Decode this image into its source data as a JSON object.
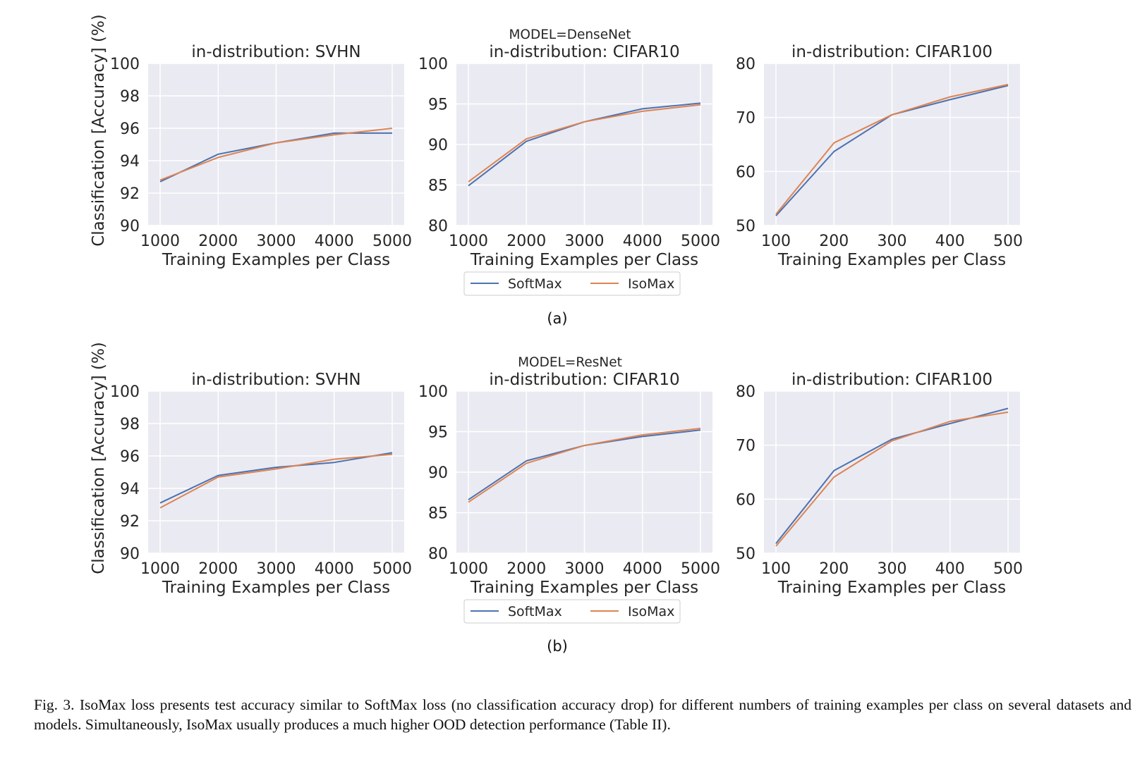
{
  "colors": {
    "softmax": "#4c72b0",
    "isomax": "#dd8452",
    "plot_bg": "#eaeaf2",
    "grid": "#ffffff"
  },
  "legend": {
    "entries": [
      "SoftMax",
      "IsoMax"
    ]
  },
  "rows": [
    {
      "suptitle": "MODEL=DenseNet",
      "sublabel": "(a)"
    },
    {
      "suptitle": "MODEL=ResNet",
      "sublabel": "(b)"
    }
  ],
  "ylabel": "Classification [Accuracy] (%)",
  "xlabel": "Training Examples per Class",
  "caption": "Fig. 3.  IsoMax loss presents test accuracy similar to SoftMax loss (no classification accuracy drop) for different numbers of training examples per class on several datasets and models. Simultaneously, IsoMax usually produces a much higher OOD detection performance (Table II).",
  "chart_data": [
    {
      "type": "line",
      "row": "DenseNet",
      "title": "in-distribution: SVHN",
      "xlabel": "Training Examples per Class",
      "ylabel": "Classification [Accuracy] (%)",
      "x": [
        1000,
        2000,
        3000,
        4000,
        5000
      ],
      "xticks": [
        1000,
        2000,
        3000,
        4000,
        5000
      ],
      "xlim": [
        1000,
        5000
      ],
      "ylim": [
        90,
        100
      ],
      "yticks": [
        90,
        92,
        94,
        96,
        98,
        100
      ],
      "grid": true,
      "series": [
        {
          "name": "SoftMax",
          "values": [
            92.7,
            94.4,
            95.1,
            95.7,
            95.7
          ]
        },
        {
          "name": "IsoMax",
          "values": [
            92.8,
            94.2,
            95.1,
            95.6,
            96.0
          ]
        }
      ]
    },
    {
      "type": "line",
      "row": "DenseNet",
      "title": "in-distribution: CIFAR10",
      "xlabel": "Training Examples per Class",
      "ylabel": "",
      "x": [
        1000,
        2000,
        3000,
        4000,
        5000
      ],
      "xticks": [
        1000,
        2000,
        3000,
        4000,
        5000
      ],
      "xlim": [
        1000,
        5000
      ],
      "ylim": [
        80,
        100
      ],
      "yticks": [
        80,
        85,
        90,
        95,
        100
      ],
      "grid": true,
      "series": [
        {
          "name": "SoftMax",
          "values": [
            84.9,
            90.4,
            92.8,
            94.4,
            95.1
          ]
        },
        {
          "name": "IsoMax",
          "values": [
            85.4,
            90.7,
            92.8,
            94.1,
            94.9
          ]
        }
      ]
    },
    {
      "type": "line",
      "row": "DenseNet",
      "title": "in-distribution: CIFAR100",
      "xlabel": "Training Examples per Class",
      "ylabel": "",
      "x": [
        100,
        200,
        300,
        400,
        500
      ],
      "xticks": [
        100,
        200,
        300,
        400,
        500
      ],
      "xlim": [
        100,
        500
      ],
      "ylim": [
        50,
        80
      ],
      "yticks": [
        50,
        60,
        70,
        80
      ],
      "grid": true,
      "series": [
        {
          "name": "SoftMax",
          "values": [
            51.8,
            63.7,
            70.5,
            73.3,
            75.9
          ]
        },
        {
          "name": "IsoMax",
          "values": [
            52.1,
            65.3,
            70.5,
            73.8,
            76.1
          ]
        }
      ]
    },
    {
      "type": "line",
      "row": "ResNet",
      "title": "in-distribution: SVHN",
      "xlabel": "Training Examples per Class",
      "ylabel": "Classification [Accuracy] (%)",
      "x": [
        1000,
        2000,
        3000,
        4000,
        5000
      ],
      "xticks": [
        1000,
        2000,
        3000,
        4000,
        5000
      ],
      "xlim": [
        1000,
        5000
      ],
      "ylim": [
        90,
        100
      ],
      "yticks": [
        90,
        92,
        94,
        96,
        98,
        100
      ],
      "grid": true,
      "series": [
        {
          "name": "SoftMax",
          "values": [
            93.1,
            94.8,
            95.3,
            95.6,
            96.2
          ]
        },
        {
          "name": "IsoMax",
          "values": [
            92.8,
            94.7,
            95.2,
            95.8,
            96.1
          ]
        }
      ]
    },
    {
      "type": "line",
      "row": "ResNet",
      "title": "in-distribution: CIFAR10",
      "xlabel": "Training Examples per Class",
      "ylabel": "",
      "x": [
        1000,
        2000,
        3000,
        4000,
        5000
      ],
      "xticks": [
        1000,
        2000,
        3000,
        4000,
        5000
      ],
      "xlim": [
        1000,
        5000
      ],
      "ylim": [
        80,
        100
      ],
      "yticks": [
        80,
        85,
        90,
        95,
        100
      ],
      "grid": true,
      "series": [
        {
          "name": "SoftMax",
          "values": [
            86.6,
            91.4,
            93.3,
            94.4,
            95.2
          ]
        },
        {
          "name": "IsoMax",
          "values": [
            86.3,
            91.1,
            93.3,
            94.6,
            95.4
          ]
        }
      ]
    },
    {
      "type": "line",
      "row": "ResNet",
      "title": "in-distribution: CIFAR100",
      "xlabel": "Training Examples per Class",
      "ylabel": "",
      "x": [
        100,
        200,
        300,
        400,
        500
      ],
      "xticks": [
        100,
        200,
        300,
        400,
        500
      ],
      "xlim": [
        100,
        500
      ],
      "ylim": [
        50,
        80
      ],
      "yticks": [
        50,
        60,
        70,
        80
      ],
      "grid": true,
      "series": [
        {
          "name": "SoftMax",
          "values": [
            51.8,
            65.3,
            71.1,
            74.0,
            76.8
          ]
        },
        {
          "name": "IsoMax",
          "values": [
            51.3,
            64.1,
            70.8,
            74.4,
            76.1
          ]
        }
      ]
    }
  ]
}
